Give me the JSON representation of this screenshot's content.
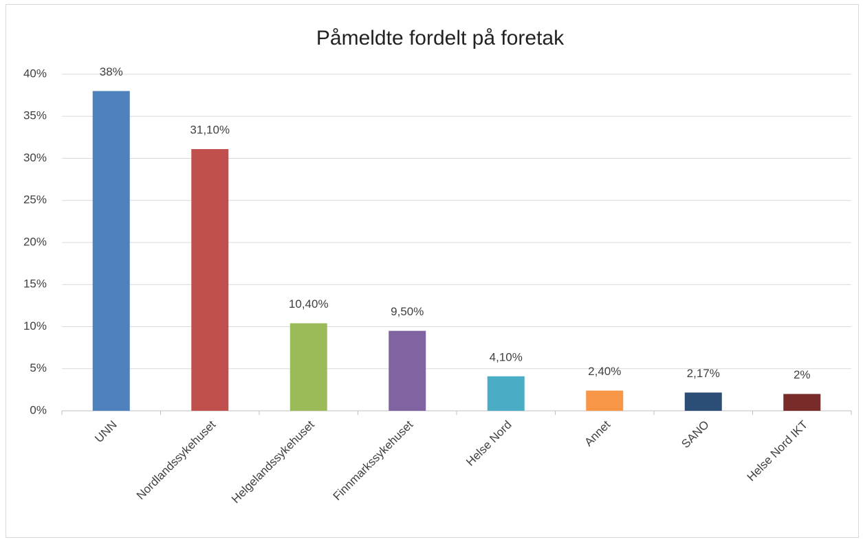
{
  "chart_data": {
    "type": "bar",
    "title": "Påmeldte fordelt på foretak",
    "categories": [
      "UNN",
      "Nordlandssykehuset",
      "Helgelandssykehuset",
      "Finnmarkssykehuset",
      "Helse Nord",
      "Annet",
      "SANO",
      "Helse Nord IKT"
    ],
    "values": [
      38,
      31.1,
      10.4,
      9.5,
      4.1,
      2.4,
      2.17,
      2
    ],
    "value_labels": [
      "38%",
      "31,10%",
      "10,40%",
      "9,50%",
      "4,10%",
      "2,40%",
      "2,17%",
      "2%"
    ],
    "colors": [
      "#4f81bd",
      "#c0504d",
      "#9bbb59",
      "#8064a2",
      "#4bacc6",
      "#f79646",
      "#2c4d75",
      "#772c2a"
    ],
    "ylim": [
      0,
      40
    ],
    "yticks": [
      {
        "value": 0,
        "label": "0%"
      },
      {
        "value": 5,
        "label": "5%"
      },
      {
        "value": 10,
        "label": "10%"
      },
      {
        "value": 15,
        "label": "15%"
      },
      {
        "value": 20,
        "label": "20%"
      },
      {
        "value": 25,
        "label": "25%"
      },
      {
        "value": 30,
        "label": "30%"
      },
      {
        "value": 35,
        "label": "35%"
      },
      {
        "value": 40,
        "label": "40%"
      }
    ],
    "grid": true
  }
}
